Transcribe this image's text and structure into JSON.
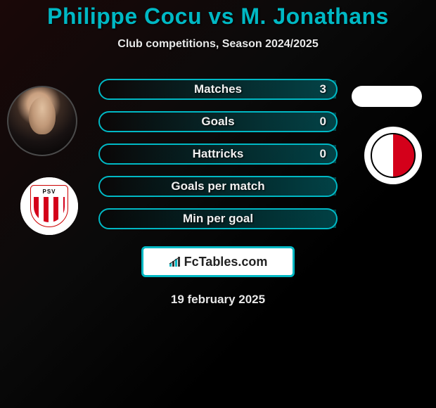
{
  "title": "Philippe Cocu vs M. Jonathans",
  "subtitle": "Club competitions, Season 2024/2025",
  "colors": {
    "accent": "#00b8c4",
    "text": "#e8e8e8",
    "barBorder": "#00b8c4",
    "brandBorder": "#00b8c4",
    "white": "#ffffff",
    "psvRed": "#d4001a"
  },
  "stats": [
    {
      "label": "Matches",
      "value": "3",
      "fillPercent": 100
    },
    {
      "label": "Goals",
      "value": "0",
      "fillPercent": 100
    },
    {
      "label": "Hattricks",
      "value": "0",
      "fillPercent": 100
    },
    {
      "label": "Goals per match",
      "value": "",
      "fillPercent": 100
    },
    {
      "label": "Min per goal",
      "value": "",
      "fillPercent": 100
    }
  ],
  "brand": "FcTables.com",
  "date": "19 february 2025",
  "players": {
    "left": {
      "name": "Philippe Cocu",
      "club": "PSV"
    },
    "right": {
      "name": "M. Jonathans",
      "club": "FC Utrecht"
    }
  }
}
